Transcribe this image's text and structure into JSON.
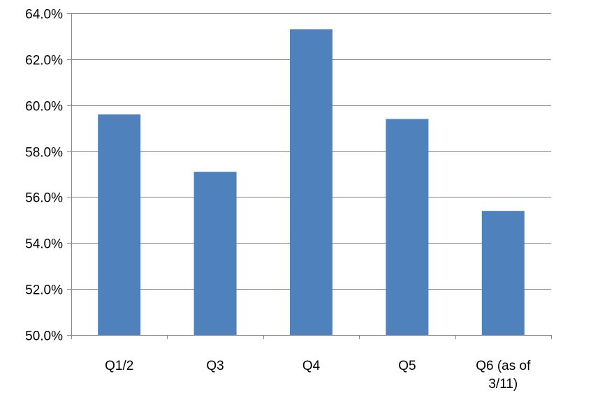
{
  "chart_data": {
    "type": "bar",
    "categories": [
      "Q1/2",
      "Q3",
      "Q4",
      "Q5",
      "Q6 (as of 3/11)"
    ],
    "category_lines": [
      [
        "Q1/2"
      ],
      [
        "Q3"
      ],
      [
        "Q4"
      ],
      [
        "Q5"
      ],
      [
        "Q6 (as of",
        "3/11)"
      ]
    ],
    "values": [
      59.6,
      57.1,
      63.3,
      59.4,
      55.4
    ],
    "ylim": [
      50.0,
      64.0
    ],
    "yticks": [
      50.0,
      52.0,
      54.0,
      56.0,
      58.0,
      60.0,
      62.0,
      64.0
    ],
    "ytick_labels": [
      "50.0%",
      "52.0%",
      "54.0%",
      "56.0%",
      "58.0%",
      "60.0%",
      "62.0%",
      "64.0%"
    ],
    "title": "",
    "xlabel": "",
    "ylabel": "",
    "grid": true,
    "legend": "none",
    "bar_color": "#4F81BD",
    "grid_color": "#868686"
  }
}
